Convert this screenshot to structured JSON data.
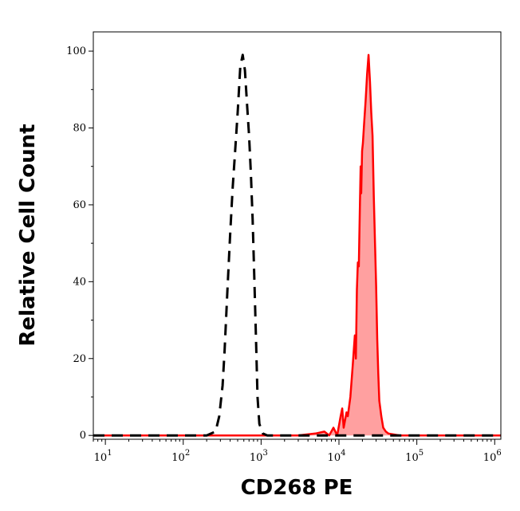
{
  "chart_data": {
    "type": "area",
    "title": "",
    "xlabel": "CD268 PE",
    "ylabel": "Relative Cell Count",
    "x_scale": "log",
    "xlim": [
      7,
      1200000
    ],
    "ylim": [
      -1,
      105
    ],
    "grid": false,
    "legend": "none",
    "x_ticks": [
      {
        "base": "10",
        "exp": "1",
        "value": 10
      },
      {
        "base": "10",
        "exp": "2",
        "value": 100
      },
      {
        "base": "10",
        "exp": "3",
        "value": 1000
      },
      {
        "base": "10",
        "exp": "4",
        "value": 10000
      },
      {
        "base": "10",
        "exp": "5",
        "value": 100000
      },
      {
        "base": "10",
        "exp": "6",
        "value": 1000000
      }
    ],
    "y_ticks": [
      {
        "label": "0",
        "value": 0
      },
      {
        "label": "20",
        "value": 20
      },
      {
        "label": "40",
        "value": 40
      },
      {
        "label": "60",
        "value": 60
      },
      {
        "label": "80",
        "value": 80
      },
      {
        "label": "100",
        "value": 100
      }
    ],
    "series": [
      {
        "style": "dashed",
        "color": "#000000",
        "fill": false,
        "points": [
          [
            7,
            0
          ],
          [
            100,
            0
          ],
          [
            200,
            0
          ],
          [
            260,
            1
          ],
          [
            290,
            5
          ],
          [
            320,
            13
          ],
          [
            340,
            22
          ],
          [
            370,
            38
          ],
          [
            400,
            52
          ],
          [
            430,
            64
          ],
          [
            460,
            73
          ],
          [
            500,
            84
          ],
          [
            540,
            96
          ],
          [
            580,
            99
          ],
          [
            620,
            95
          ],
          [
            660,
            86
          ],
          [
            700,
            78
          ],
          [
            740,
            68
          ],
          [
            780,
            56
          ],
          [
            820,
            40
          ],
          [
            860,
            25
          ],
          [
            900,
            10
          ],
          [
            950,
            3
          ],
          [
            1050,
            0.5
          ],
          [
            1200,
            0
          ],
          [
            1200000,
            0
          ]
        ]
      },
      {
        "style": "solid",
        "color": "#ff0000",
        "fill": true,
        "fill_color": "#ffa0a0",
        "points": [
          [
            7,
            0
          ],
          [
            1000,
            0
          ],
          [
            3000,
            0
          ],
          [
            5000,
            0.5
          ],
          [
            6500,
            1
          ],
          [
            7500,
            0
          ],
          [
            8500,
            2
          ],
          [
            9500,
            0
          ],
          [
            10500,
            5
          ],
          [
            11000,
            7
          ],
          [
            11500,
            2
          ],
          [
            12500,
            6
          ],
          [
            13000,
            5
          ],
          [
            14000,
            10
          ],
          [
            15000,
            18
          ],
          [
            16000,
            26
          ],
          [
            16500,
            20
          ],
          [
            17000,
            38
          ],
          [
            17500,
            45
          ],
          [
            18000,
            44
          ],
          [
            18500,
            58
          ],
          [
            19000,
            70
          ],
          [
            19300,
            63
          ],
          [
            19800,
            74
          ],
          [
            20300,
            76
          ],
          [
            21000,
            81
          ],
          [
            22000,
            87
          ],
          [
            23000,
            94
          ],
          [
            24000,
            99
          ],
          [
            25000,
            92
          ],
          [
            26000,
            84
          ],
          [
            27000,
            78
          ],
          [
            28000,
            62
          ],
          [
            29000,
            50
          ],
          [
            30000,
            39
          ],
          [
            31000,
            25
          ],
          [
            32000,
            16
          ],
          [
            33000,
            9
          ],
          [
            35000,
            5
          ],
          [
            37000,
            2
          ],
          [
            40000,
            1
          ],
          [
            43000,
            0.5
          ],
          [
            60000,
            0
          ],
          [
            1200000,
            0
          ]
        ]
      }
    ]
  }
}
